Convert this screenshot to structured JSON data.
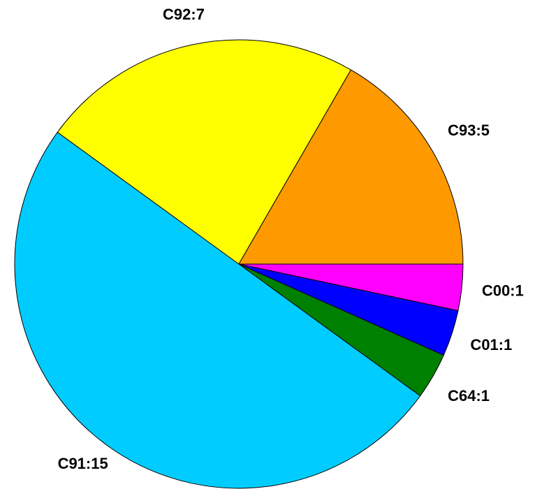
{
  "chart_data": {
    "type": "pie",
    "values": [
      1,
      1,
      1,
      15,
      7,
      5
    ],
    "value_labels": [
      "C00:1",
      "C01:1",
      "C64:1",
      "C91:15",
      "C92:7",
      "C93:5"
    ],
    "colors": [
      "#ff00ff",
      "#0000ff",
      "#008000",
      "#00ccff",
      "#ffff00",
      "#ff9900"
    ]
  }
}
